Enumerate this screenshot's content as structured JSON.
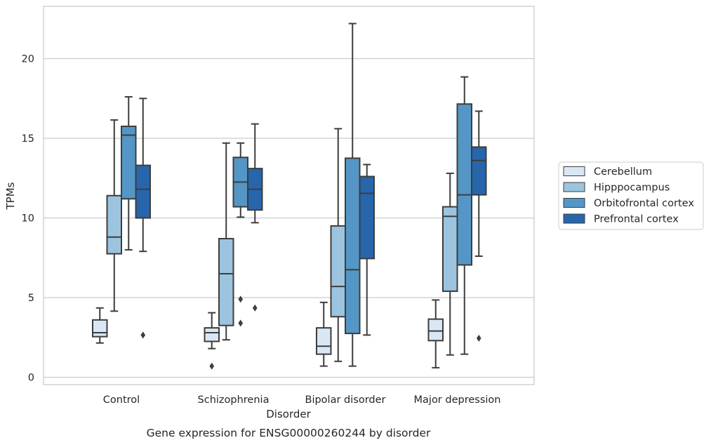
{
  "chart_data": {
    "type": "box",
    "title": "Gene expression for ENSG00000260244 by disorder",
    "xlabel": "Disorder",
    "ylabel": "TPMs",
    "ylim": [
      -0.45,
      23.3
    ],
    "yticks": [
      0,
      5,
      10,
      15,
      20
    ],
    "grid": true,
    "legend_position": "right",
    "categories": [
      "Control",
      "Schizophrenia",
      "Bipolar disorder",
      "Major depression"
    ],
    "series": [
      {
        "name": "Cerebellum",
        "color": "#d9e7f5",
        "boxes": [
          {
            "whisker_low": 2.15,
            "q1": 2.55,
            "median": 2.8,
            "q3": 3.6,
            "whisker_high": 4.35,
            "outliers": []
          },
          {
            "whisker_low": 1.8,
            "q1": 2.25,
            "median": 2.8,
            "q3": 3.1,
            "whisker_high": 4.05,
            "outliers": [
              0.7
            ]
          },
          {
            "whisker_low": 0.7,
            "q1": 1.45,
            "median": 1.95,
            "q3": 3.1,
            "whisker_high": 4.7,
            "outliers": []
          },
          {
            "whisker_low": 0.6,
            "q1": 2.3,
            "median": 2.9,
            "q3": 3.65,
            "whisker_high": 4.85,
            "outliers": []
          }
        ]
      },
      {
        "name": "Hipppocampus",
        "color": "#9cc4df",
        "boxes": [
          {
            "whisker_low": 4.15,
            "q1": 7.75,
            "median": 8.8,
            "q3": 11.4,
            "whisker_high": 16.15,
            "outliers": []
          },
          {
            "whisker_low": 2.35,
            "q1": 3.25,
            "median": 6.5,
            "q3": 8.7,
            "whisker_high": 14.7,
            "outliers": []
          },
          {
            "whisker_low": 1.0,
            "q1": 3.8,
            "median": 5.7,
            "q3": 9.5,
            "whisker_high": 15.6,
            "outliers": []
          },
          {
            "whisker_low": 1.4,
            "q1": 5.4,
            "median": 10.1,
            "q3": 10.7,
            "whisker_high": 12.8,
            "outliers": []
          }
        ]
      },
      {
        "name": "Orbitofrontal cortex",
        "color": "#5496c6",
        "boxes": [
          {
            "whisker_low": 8.0,
            "q1": 11.2,
            "median": 15.2,
            "q3": 15.75,
            "whisker_high": 17.6,
            "outliers": []
          },
          {
            "whisker_low": 10.05,
            "q1": 10.7,
            "median": 12.25,
            "q3": 13.8,
            "whisker_high": 14.7,
            "outliers": [
              4.9,
              3.4
            ]
          },
          {
            "whisker_low": 0.7,
            "q1": 2.75,
            "median": 6.75,
            "q3": 13.75,
            "whisker_high": 22.2,
            "outliers": []
          },
          {
            "whisker_low": 1.45,
            "q1": 7.05,
            "median": 11.45,
            "q3": 17.15,
            "whisker_high": 18.85,
            "outliers": []
          }
        ]
      },
      {
        "name": "Prefrontal cortex",
        "color": "#2766ab",
        "boxes": [
          {
            "whisker_low": 7.9,
            "q1": 10.0,
            "median": 11.8,
            "q3": 13.3,
            "whisker_high": 17.5,
            "outliers": [
              2.65
            ]
          },
          {
            "whisker_low": 9.7,
            "q1": 10.5,
            "median": 11.8,
            "q3": 13.1,
            "whisker_high": 15.9,
            "outliers": [
              4.35
            ]
          },
          {
            "whisker_low": 2.65,
            "q1": 7.45,
            "median": 11.55,
            "q3": 12.6,
            "whisker_high": 13.35,
            "outliers": []
          },
          {
            "whisker_low": 7.6,
            "q1": 11.45,
            "median": 13.6,
            "q3": 14.45,
            "whisker_high": 16.7,
            "outliers": [
              2.45
            ]
          }
        ]
      }
    ]
  }
}
